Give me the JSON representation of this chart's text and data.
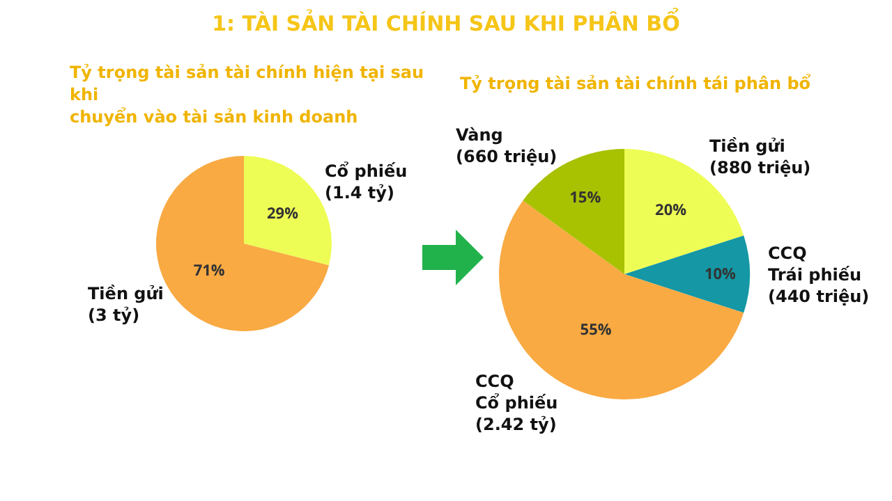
{
  "chart_data": [
    {
      "type": "pie",
      "title": "1: TÀI SẢN TÀI CHÍNH SAU KHI PHÂN BỔ",
      "subtitle": "Tỷ trọng tài sản tài chính hiện tại sau khi\nchuyển vào tài sản kinh doanh",
      "categories": [
        "Cổ phiếu\n(1.4 tỷ)",
        "Tiền gửi\n(3 tỷ)"
      ],
      "values": [
        29,
        71
      ],
      "colors": [
        "#eefd55",
        "#f9aa43"
      ],
      "value_labels": [
        "29%",
        "71%"
      ]
    },
    {
      "type": "pie",
      "title": "Tỷ trọng tài sản tài chính tái phân bổ",
      "categories": [
        "Tiền gửi\n(880 triệu)",
        "CCQ\nTrái phiếu\n(440 triệu)",
        "CCQ\nCổ phiếu\n(2.42 tỷ)",
        "Vàng\n(660 triệu)"
      ],
      "values": [
        20,
        10,
        55,
        15
      ],
      "colors": [
        "#eefd55",
        "#1597a5",
        "#f9aa43",
        "#a8c100"
      ],
      "value_labels": [
        "20%",
        "10%",
        "55%",
        "15%"
      ]
    }
  ]
}
